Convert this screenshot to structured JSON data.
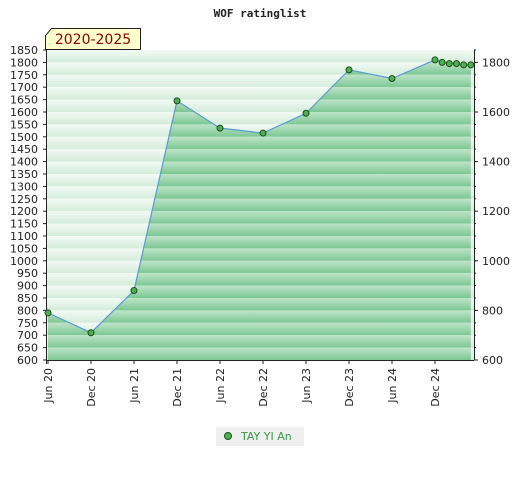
{
  "chart_data": {
    "type": "area",
    "title": "WOF ratinglist",
    "badge": "2020-2025",
    "categories": [
      "Jun 20",
      "Dec 20",
      "Jun 21",
      "Dec 21",
      "Jun 22",
      "Dec 22",
      "Jun 23",
      "Dec 23",
      "Jun 24",
      "Dec 24"
    ],
    "series": [
      {
        "name": "TAY YI An",
        "x": [
          "Jun 20",
          "Dec 20",
          "Jun 21",
          "Dec 21",
          "Jun 22",
          "Dec 22",
          "Jun 23",
          "Dec 23",
          "Jun 24",
          "Dec 24",
          "Jan 25",
          "Feb 25",
          "Mar 25",
          "Apr 25",
          "May 25"
        ],
        "values": [
          790,
          710,
          880,
          1645,
          1535,
          1515,
          1595,
          1770,
          1735,
          1810,
          1800,
          1795,
          1795,
          1790,
          1790
        ]
      }
    ],
    "ylim": [
      600,
      1850
    ],
    "y_left_ticks": [
      "1850",
      "1800",
      "1750",
      "1700",
      "1650",
      "1600",
      "1550",
      "1500",
      "1450",
      "1400",
      "1350",
      "1300",
      "1250",
      "1200",
      "1150",
      "1100",
      "1050",
      "1000",
      "950",
      "900",
      "850",
      "800",
      "750",
      "700",
      "650",
      "600"
    ],
    "y_right_ticks": [
      "1800",
      "1600",
      "1400",
      "1200",
      "1000",
      "800",
      "600"
    ],
    "grid": false,
    "legend_position": "bottom-center",
    "colors": {
      "line": "#5a9bd5",
      "marker_fill": "#4caf50",
      "marker_stroke": "#1e4d1e",
      "band_dark": "#7cc793",
      "band_light": "#bfe4c8",
      "badge_bg": "#ffffcc",
      "badge_text": "#8b0000",
      "legend_text": "#3a9a4a"
    }
  }
}
